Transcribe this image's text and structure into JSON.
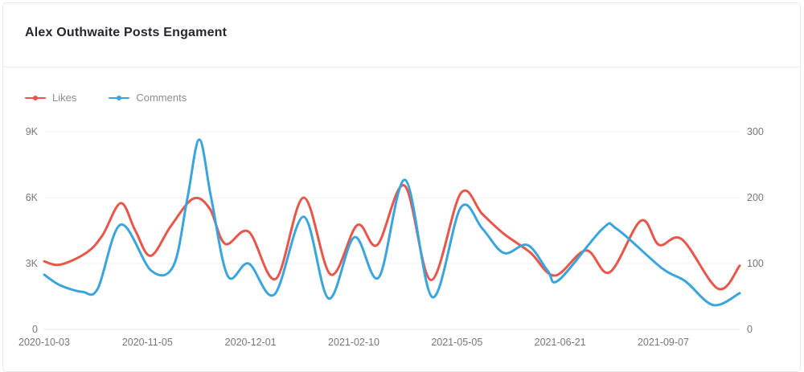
{
  "header": {
    "title": "Alex Outhwaite Posts Engament"
  },
  "chart_data": {
    "type": "line",
    "smooth": true,
    "title": "Alex Outhwaite Posts Engament",
    "legend": [
      "Likes",
      "Comments"
    ],
    "legend_position": "top-left",
    "grid": true,
    "x_unit": "fraction-of-x-range",
    "x_tick_labels": [
      "2020-10-03",
      "2020-11-05",
      "2020-12-01",
      "2021-02-10",
      "2021-05-05",
      "2021-06-21",
      "2021-09-07"
    ],
    "left_axis": {
      "ticks": [
        "0",
        "3K",
        "6K",
        "9K"
      ],
      "min": 0,
      "max": 9000
    },
    "right_axis": {
      "ticks": [
        "0",
        "100",
        "200",
        "300"
      ],
      "min": 0,
      "max": 300
    },
    "series": [
      {
        "name": "Likes",
        "axis": "left",
        "color": "#e8564a",
        "points": [
          [
            0,
            3100
          ],
          [
            0.023,
            2950
          ],
          [
            0.061,
            3500
          ],
          [
            0.084,
            4300
          ],
          [
            0.11,
            5750
          ],
          [
            0.131,
            4500
          ],
          [
            0.153,
            3350
          ],
          [
            0.182,
            4700
          ],
          [
            0.214,
            5950
          ],
          [
            0.238,
            5500
          ],
          [
            0.26,
            3900
          ],
          [
            0.294,
            4450
          ],
          [
            0.333,
            2300
          ],
          [
            0.373,
            6000
          ],
          [
            0.412,
            2500
          ],
          [
            0.45,
            4750
          ],
          [
            0.479,
            3850
          ],
          [
            0.518,
            6550
          ],
          [
            0.556,
            2250
          ],
          [
            0.599,
            6200
          ],
          [
            0.63,
            5250
          ],
          [
            0.661,
            4350
          ],
          [
            0.699,
            3500
          ],
          [
            0.734,
            2450
          ],
          [
            0.779,
            3600
          ],
          [
            0.813,
            2600
          ],
          [
            0.858,
            4950
          ],
          [
            0.884,
            3850
          ],
          [
            0.917,
            4100
          ],
          [
            0.969,
            1850
          ],
          [
            1,
            2900
          ]
        ]
      },
      {
        "name": "Comments",
        "axis": "right",
        "color": "#3aa4dc",
        "points": [
          [
            0,
            83
          ],
          [
            0.023,
            67
          ],
          [
            0.055,
            57
          ],
          [
            0.077,
            62
          ],
          [
            0.11,
            159
          ],
          [
            0.154,
            89
          ],
          [
            0.186,
            97
          ],
          [
            0.206,
            200
          ],
          [
            0.223,
            288
          ],
          [
            0.24,
            200
          ],
          [
            0.264,
            81
          ],
          [
            0.294,
            100
          ],
          [
            0.331,
            53
          ],
          [
            0.373,
            171
          ],
          [
            0.409,
            47
          ],
          [
            0.446,
            140
          ],
          [
            0.481,
            79
          ],
          [
            0.519,
            227
          ],
          [
            0.558,
            49
          ],
          [
            0.599,
            185
          ],
          [
            0.63,
            153
          ],
          [
            0.661,
            116
          ],
          [
            0.695,
            128
          ],
          [
            0.724,
            89
          ],
          [
            0.74,
            75
          ],
          [
            0.803,
            153
          ],
          [
            0.824,
            152
          ],
          [
            0.888,
            93
          ],
          [
            0.922,
            73
          ],
          [
            0.962,
            37
          ],
          [
            1,
            55
          ]
        ]
      }
    ]
  }
}
